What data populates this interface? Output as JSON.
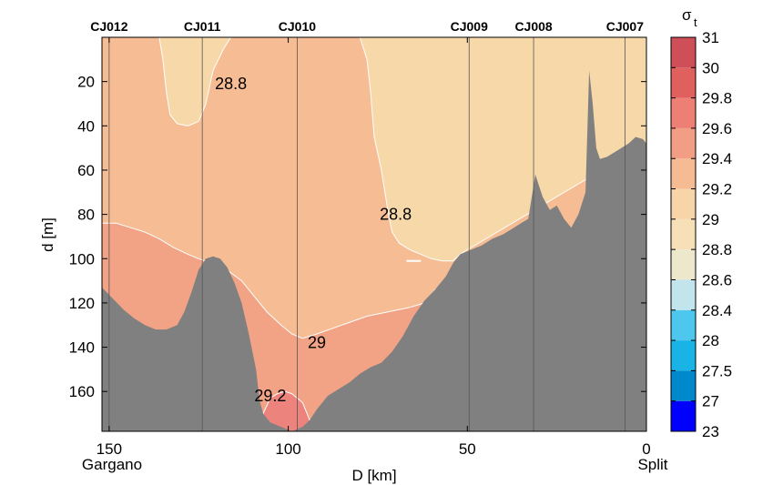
{
  "chart_data": {
    "type": "heatmap",
    "title": "",
    "xlabel": "D [km]",
    "ylabel": "d [m]",
    "xlim": [
      152,
      0
    ],
    "ylim": [
      0,
      178
    ],
    "x_ticks": [
      150,
      100,
      50,
      0
    ],
    "y_ticks": [
      20,
      40,
      60,
      80,
      100,
      120,
      140,
      160
    ],
    "x_end_labels": {
      "left": "Gargano",
      "right": "Split"
    },
    "stations": [
      {
        "name": "CJ012",
        "x": 150
      },
      {
        "name": "CJ011",
        "x": 124
      },
      {
        "name": "CJ010",
        "x": 97.5
      },
      {
        "name": "CJ009",
        "x": 49.5
      },
      {
        "name": "CJ008",
        "x": 31.5
      },
      {
        "name": "CJ007",
        "x": 6
      }
    ],
    "colorbar": {
      "label_main": "σ",
      "label_sub": "t",
      "levels": [
        "23",
        "27",
        "27.5",
        "28",
        "28.4",
        "28.6",
        "28.8",
        "29",
        "29.2",
        "29.4",
        "29.6",
        "29.8",
        "30",
        "31"
      ],
      "colors": [
        "#0000ff",
        "#0088cc",
        "#19b3e6",
        "#4dc7ed",
        "#c2e4ed",
        "#ede8cc",
        "#f7e0b8",
        "#f7d5a8",
        "#f7bb94",
        "#f29e85",
        "#ee7f75",
        "#e0605e",
        "#cf4f58",
        "#ba3d4c"
      ]
    },
    "regions": [
      {
        "level": "28.6–28.8",
        "color": "#f7d8a8"
      },
      {
        "level": "28.8–29",
        "color": "#f6bd94"
      },
      {
        "level": "29–29.2",
        "color": "#f2a285"
      },
      {
        "level": "29.2–29.4",
        "color": "#ec837c"
      },
      {
        "level": "seabed",
        "color": "#808080"
      }
    ],
    "contour_labels": [
      {
        "text": "28.8",
        "x": 116,
        "y": 21
      },
      {
        "text": "28.8",
        "x": 70,
        "y": 80
      },
      {
        "text": "29",
        "x": 92,
        "y": 138
      },
      {
        "text": "29.2",
        "x": 105,
        "y": 162
      }
    ],
    "seabed": [
      [
        152,
        113
      ],
      [
        149,
        118
      ],
      [
        146,
        123
      ],
      [
        143,
        127
      ],
      [
        140,
        130
      ],
      [
        137,
        132
      ],
      [
        134,
        132
      ],
      [
        131,
        130
      ],
      [
        129,
        124
      ],
      [
        127,
        115
      ],
      [
        125,
        105
      ],
      [
        123,
        100
      ],
      [
        121,
        99
      ],
      [
        119,
        100
      ],
      [
        117,
        104
      ],
      [
        115,
        111
      ],
      [
        113,
        120
      ],
      [
        111,
        134
      ],
      [
        109,
        150
      ],
      [
        108,
        164
      ],
      [
        107,
        170
      ],
      [
        105,
        174
      ],
      [
        102,
        176
      ],
      [
        99,
        178
      ],
      [
        96,
        176
      ],
      [
        94,
        173
      ],
      [
        92,
        168
      ],
      [
        89,
        162
      ],
      [
        86,
        159
      ],
      [
        83,
        156
      ],
      [
        80,
        152
      ],
      [
        77,
        149
      ],
      [
        74,
        147
      ],
      [
        71,
        142
      ],
      [
        68,
        135
      ],
      [
        65,
        126
      ],
      [
        62,
        119
      ],
      [
        59,
        114
      ],
      [
        56,
        108
      ],
      [
        54,
        102
      ],
      [
        52,
        98
      ],
      [
        49,
        96
      ],
      [
        46,
        94
      ],
      [
        43,
        91
      ],
      [
        40,
        89
      ],
      [
        37,
        86
      ],
      [
        35,
        84
      ],
      [
        33,
        82
      ],
      [
        31,
        62
      ],
      [
        29,
        72
      ],
      [
        27,
        78
      ],
      [
        25,
        76
      ],
      [
        23,
        82
      ],
      [
        21,
        86
      ],
      [
        19,
        80
      ],
      [
        17,
        70
      ],
      [
        16,
        15
      ],
      [
        15,
        30
      ],
      [
        14,
        50
      ],
      [
        13,
        55
      ],
      [
        11,
        54
      ],
      [
        8,
        51
      ],
      [
        5,
        48
      ],
      [
        3,
        45
      ],
      [
        1,
        46
      ],
      [
        0,
        48
      ]
    ],
    "boundaries": {
      "b288_top": [
        [
          152,
          0
        ],
        [
          136,
          0
        ],
        [
          135,
          10
        ],
        [
          134,
          25
        ],
        [
          133,
          35
        ],
        [
          131,
          39
        ],
        [
          128,
          40
        ],
        [
          125,
          38
        ],
        [
          123,
          30
        ],
        [
          121,
          15
        ],
        [
          118,
          5
        ],
        [
          116,
          0
        ],
        [
          80,
          0
        ],
        [
          78,
          10
        ],
        [
          77,
          25
        ],
        [
          76,
          45
        ],
        [
          74,
          60
        ],
        [
          73,
          70
        ],
        [
          72,
          80
        ],
        [
          71,
          88
        ],
        [
          69,
          93
        ],
        [
          66,
          96
        ],
        [
          63,
          98
        ],
        [
          60,
          100
        ],
        [
          57,
          101
        ],
        [
          54,
          101
        ],
        [
          52,
          98
        ],
        [
          50,
          96
        ],
        [
          0,
          48
        ]
      ],
      "b29_top": [
        [
          152,
          84
        ],
        [
          148,
          84
        ],
        [
          144,
          86
        ],
        [
          140,
          88
        ],
        [
          136,
          91
        ],
        [
          132,
          95
        ],
        [
          128,
          98
        ],
        [
          125,
          100
        ],
        [
          118,
          104
        ],
        [
          113,
          110
        ],
        [
          110,
          116
        ],
        [
          106,
          124
        ],
        [
          102,
          130
        ],
        [
          99,
          134
        ],
        [
          96,
          136
        ],
        [
          92,
          134
        ],
        [
          85,
          130
        ],
        [
          78,
          126
        ],
        [
          72,
          124
        ],
        [
          66,
          122
        ],
        [
          62,
          120
        ],
        [
          59,
          114
        ]
      ],
      "b292_top": [
        [
          107,
          170
        ],
        [
          105,
          163
        ],
        [
          104,
          162
        ],
        [
          103,
          161
        ],
        [
          101,
          160
        ],
        [
          99,
          161
        ],
        [
          96,
          165
        ],
        [
          94,
          173
        ]
      ]
    }
  }
}
